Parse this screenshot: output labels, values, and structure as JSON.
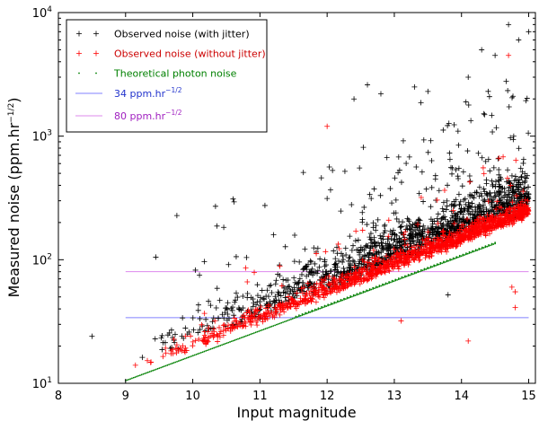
{
  "chart_data": {
    "type": "scatter",
    "title": "",
    "xlabel": "Input  magnitude",
    "ylabel": "Measured noise (ppm.hr",
    "ylabel_exp": "−1/2",
    "ylabel_tail": ")",
    "xlim": [
      8,
      15.1
    ],
    "ylim": [
      10,
      10000
    ],
    "yscale": "log",
    "xticks": [
      8,
      9,
      10,
      11,
      12,
      13,
      14,
      15
    ],
    "xtick_labels": [
      "8",
      "9",
      "10",
      "11",
      "12",
      "13",
      "14",
      "15"
    ],
    "yticks": [
      {
        "value": 10,
        "base": "10",
        "exp": "1"
      },
      {
        "value": 100,
        "base": "10",
        "exp": "2"
      },
      {
        "value": 1000,
        "base": "10",
        "exp": "3"
      },
      {
        "value": 10000,
        "base": "10",
        "exp": "4"
      }
    ],
    "legend_position": "top-left",
    "series": [
      {
        "name": "Observed noise (with jitter)",
        "marker": "+",
        "color": "#000000",
        "text_color": "#000000",
        "count": 1400,
        "x_range": [
          8.5,
          15
        ],
        "min_y": 24,
        "max_y": 8000,
        "outliers": [
          [
            8.5,
            24
          ],
          [
            14.7,
            8000
          ],
          [
            14.85,
            6000
          ],
          [
            14.3,
            5000
          ],
          [
            12.6,
            2600
          ],
          [
            13.3,
            2500
          ],
          [
            12.8,
            2200
          ],
          [
            13.5,
            2300
          ],
          [
            12.4,
            2000
          ],
          [
            14.1,
            3000
          ],
          [
            14.5,
            4500
          ],
          [
            15.0,
            7000
          ],
          [
            10.6,
            310
          ],
          [
            9.45,
            105
          ],
          [
            10.3,
            28
          ],
          [
            13.8,
            52
          ],
          [
            10.1,
            75
          ]
        ]
      },
      {
        "name": "Observed noise (without jitter)",
        "marker": "+",
        "color": "#ff0000",
        "text_color": "#cc0000",
        "count": 1400,
        "x_range": [
          9.0,
          15
        ],
        "min_y": 14,
        "max_y": 4500,
        "outliers": [
          [
            14.1,
            22
          ],
          [
            14.75,
            60
          ],
          [
            14.8,
            55
          ],
          [
            13.1,
            32
          ],
          [
            14.8,
            41
          ],
          [
            14.7,
            4500
          ],
          [
            12.0,
            1200
          ]
        ]
      },
      {
        "name": "Theoretical photon noise",
        "marker": ".",
        "color": "#008000",
        "text_color": "#008000",
        "x_start": 9.0,
        "x_end": 14.5,
        "y_start": 10.5,
        "y_end": 135
      },
      {
        "name": "34 ppm.hr",
        "name_exp": "−1/2",
        "marker": "line",
        "color": "#8080ff",
        "text_color": "#2233cc",
        "y": 34,
        "x_start": 9.0,
        "x_end": 15
      },
      {
        "name": "80 ppm.hr",
        "name_exp": "−1/2",
        "marker": "line",
        "color": "#dd88ee",
        "text_color": "#a020c0",
        "y": 80,
        "x_start": 9.0,
        "x_end": 15
      }
    ]
  }
}
